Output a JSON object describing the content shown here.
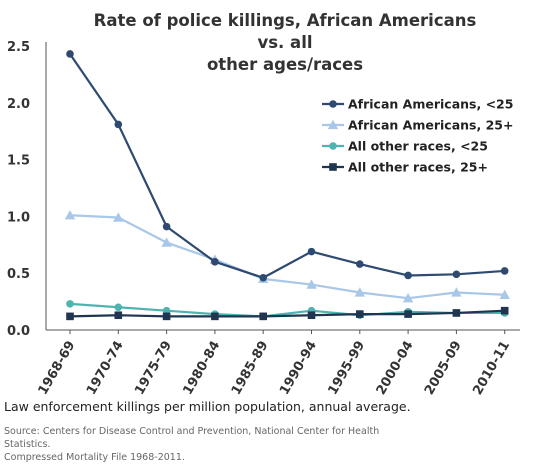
{
  "chart_data": {
    "type": "line",
    "title": "Rate of police killings, African Americans vs. all other ages/races",
    "title_lines": [
      "Rate of police killings, African Americans vs. all",
      "other ages/races"
    ],
    "xlabel": "",
    "ylabel": "",
    "categories": [
      "1968-69",
      "1970-74",
      "1975-79",
      "1980-84",
      "1985-89",
      "1990-94",
      "1995-99",
      "2000-04",
      "2005-09",
      "2010-11"
    ],
    "ylim": [
      0,
      2.5
    ],
    "yticks": [
      "0.0",
      "0.5",
      "1.0",
      "1.5",
      "2.0",
      "2.5"
    ],
    "grid": false,
    "legend_position": "right",
    "series": [
      {
        "name": "African Americans, <25",
        "color": "#2e4a70",
        "marker": "circle",
        "values": [
          2.43,
          1.81,
          0.91,
          0.6,
          0.46,
          0.69,
          0.58,
          0.48,
          0.49,
          0.52
        ]
      },
      {
        "name": "African Americans, 25+",
        "color": "#a9c7e8",
        "marker": "triangle",
        "values": [
          1.01,
          0.99,
          0.77,
          0.62,
          0.45,
          0.4,
          0.33,
          0.28,
          0.33,
          0.31
        ]
      },
      {
        "name": "All other races, <25",
        "color": "#4fb3b0",
        "marker": "circle",
        "values": [
          0.23,
          0.2,
          0.17,
          0.14,
          0.12,
          0.17,
          0.13,
          0.16,
          0.15,
          0.15
        ]
      },
      {
        "name": "All other races, 25+",
        "color": "#1f3550",
        "marker": "square",
        "values": [
          0.12,
          0.13,
          0.12,
          0.12,
          0.12,
          0.13,
          0.14,
          0.14,
          0.15,
          0.17
        ]
      }
    ]
  },
  "caption": "Law enforcement killings per million population, annual average.",
  "source_lines": [
    "Source: Centers for Disease Control and Prevention, National Center for Health Statistics.",
    "Compressed Mortality File 1968-2011."
  ]
}
